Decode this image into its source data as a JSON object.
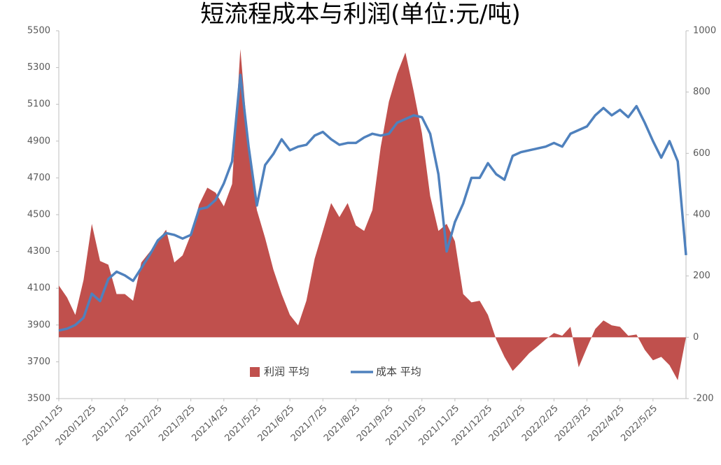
{
  "chart_data": {
    "type": "line",
    "title": "短流程成本与利润(单位:元/吨)",
    "categories": [
      "2020/11/25",
      null,
      null,
      null,
      "2020/12/25",
      null,
      null,
      null,
      "2021/1/25",
      null,
      null,
      null,
      "2021/2/25",
      null,
      null,
      null,
      "2021/3/25",
      null,
      null,
      null,
      "2021/4/25",
      null,
      null,
      null,
      "2021/5/25",
      null,
      null,
      null,
      "2021/6/25",
      null,
      null,
      null,
      "2021/7/25",
      null,
      null,
      null,
      "2021/8/25",
      null,
      null,
      null,
      "2021/9/25",
      null,
      null,
      null,
      "2021/10/25",
      null,
      null,
      null,
      "2021/11/25",
      null,
      null,
      null,
      "2021/12/25",
      null,
      null,
      null,
      "2022/1/25",
      null,
      null,
      null,
      "2022/2/25",
      null,
      null,
      null,
      "2022/3/25",
      null,
      null,
      null,
      "2022/4/25",
      null,
      null,
      null,
      "2022/5/25",
      null,
      null,
      null,
      null
    ],
    "series": [
      {
        "name": "利润 平均",
        "type": "area",
        "axis": "y2",
        "color": "#c0504d",
        "values": [
          169,
          130,
          73,
          187,
          370,
          249,
          237,
          141,
          141,
          119,
          244,
          278,
          313,
          351,
          244,
          267,
          335,
          433,
          488,
          472,
          427,
          500,
          940,
          620,
          415,
          324,
          221,
          141,
          73,
          39,
          119,
          256,
          347,
          438,
          392,
          438,
          365,
          347,
          415,
          620,
          769,
          860,
          929,
          803,
          666,
          461,
          347,
          370,
          313,
          141,
          114,
          119,
          73,
          -7,
          -64,
          -110,
          -82,
          -52,
          -30,
          -7,
          14,
          5,
          34,
          -98,
          -34,
          27,
          55,
          39,
          34,
          5,
          9,
          -41,
          -75,
          -64,
          -91,
          -140,
          0
        ]
      },
      {
        "name": "成本 平均",
        "type": "line",
        "color": "#4f81bd",
        "values": [
          3870,
          3880,
          3900,
          3940,
          4070,
          4030,
          4150,
          4190,
          4170,
          4140,
          4210,
          4280,
          4360,
          4400,
          4390,
          4370,
          4390,
          4530,
          4540,
          4580,
          4670,
          4790,
          5260,
          4870,
          4550,
          4770,
          4830,
          4910,
          4850,
          4870,
          4880,
          4930,
          4950,
          4910,
          4880,
          4890,
          4890,
          4920,
          4940,
          4930,
          4940,
          5000,
          5020,
          5040,
          5030,
          4940,
          4720,
          4300,
          4460,
          4560,
          4700,
          4700,
          4780,
          4720,
          4690,
          4820,
          4840,
          4850,
          4860,
          4870,
          4890,
          4870,
          4940,
          4960,
          4980,
          5040,
          5080,
          5040,
          5070,
          5030,
          5090,
          5000,
          4900,
          4810,
          4900,
          4790,
          4280
        ]
      }
    ],
    "ylim": [
      3500,
      5500
    ],
    "yticks": [
      3500,
      3700,
      3900,
      4100,
      4300,
      4500,
      4700,
      4900,
      5100,
      5300,
      5500
    ],
    "y2lim": [
      -200,
      1000
    ],
    "y2ticks": [
      -200,
      0,
      200,
      400,
      600,
      800,
      1000
    ],
    "grid": false,
    "legend": "bottom"
  }
}
